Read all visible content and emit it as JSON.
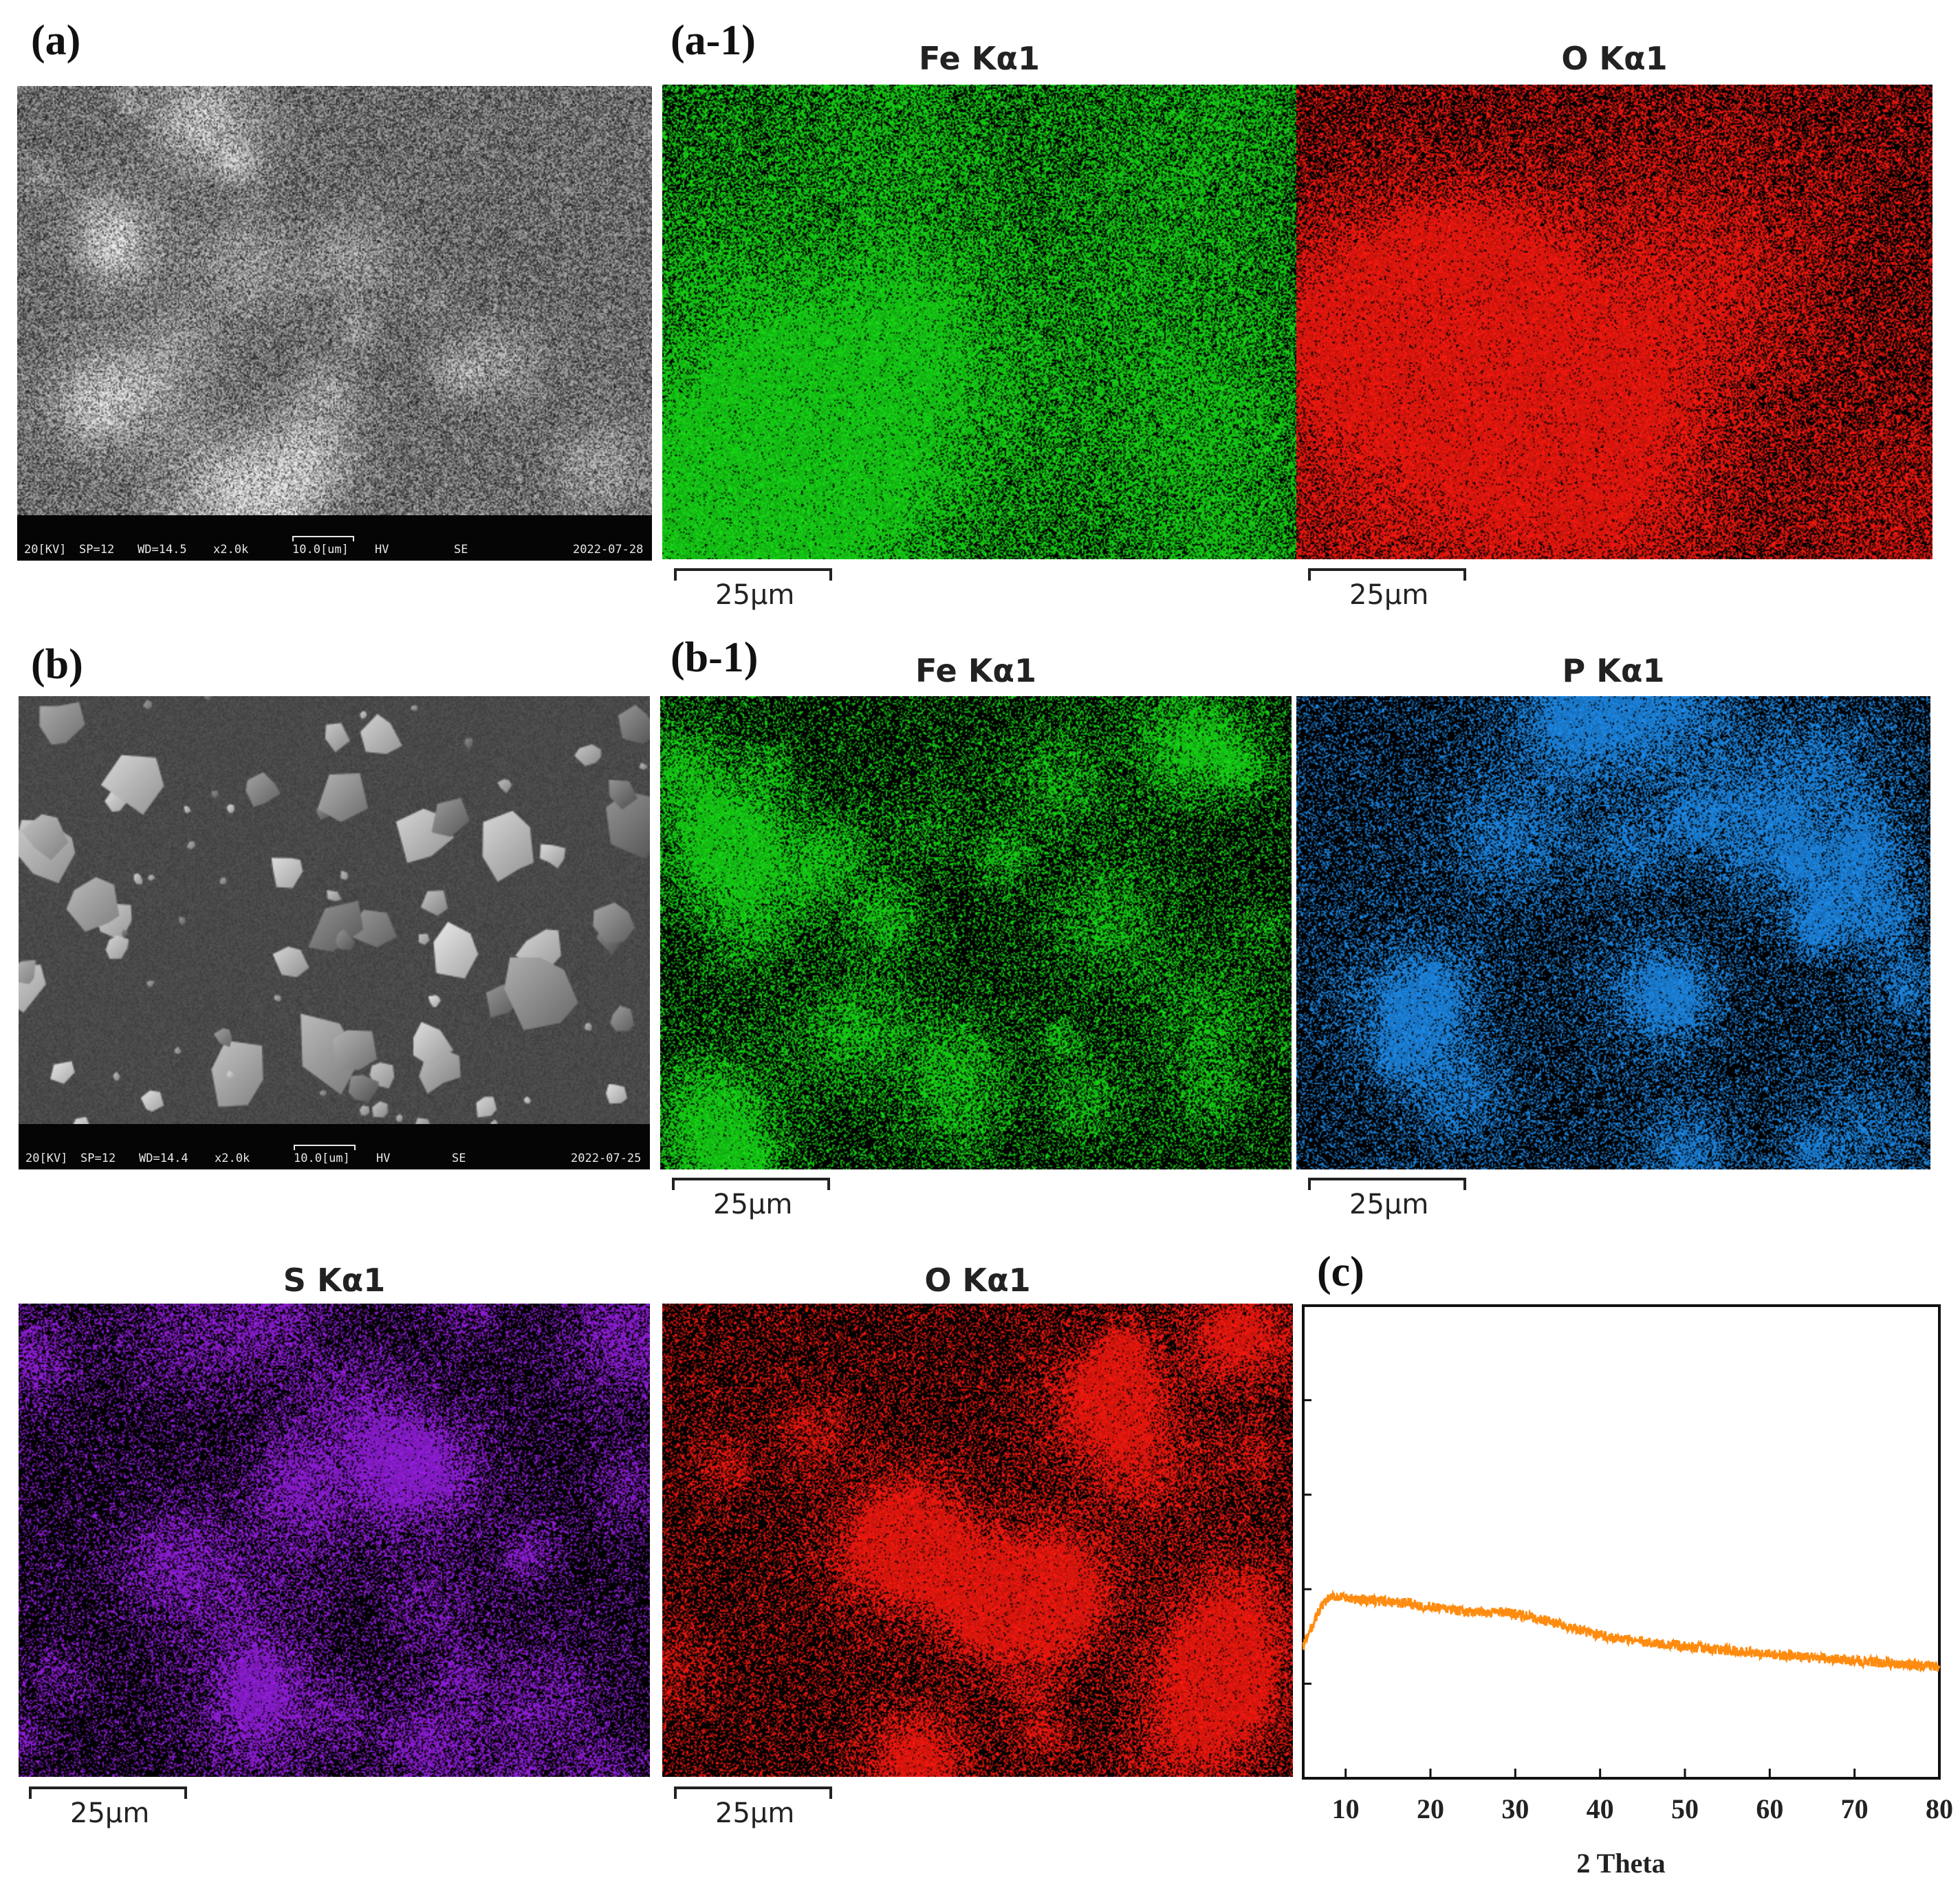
{
  "panels": {
    "a": {
      "letter": "(a)"
    },
    "a1": {
      "letter": "(a-1)",
      "map1_title": "Fe Kα1",
      "map2_title": "O Kα1",
      "map1_color": "#18e018",
      "map2_color": "#ff1a10"
    },
    "b": {
      "letter": "(b)"
    },
    "b1": {
      "letter": "(b-1)",
      "map1_title": "Fe Kα1",
      "map2_title": "P Kα1",
      "map1_color": "#18e018",
      "map2_color": "#1f8ff0"
    },
    "row3": {
      "map1_title": "S Kα1",
      "map2_title": "O Kα1",
      "map1_color": "#9a20e6",
      "map2_color": "#ff1a10"
    },
    "c": {
      "letter": "(c)"
    }
  },
  "scalebar_label": "25μm",
  "sem_a": {
    "kv": "20[KV]",
    "sp": "SP=12",
    "wd": "WD=14.5",
    "mag": "x2.0k",
    "scale": "10.0[um]",
    "hv": "HV",
    "se": "SE",
    "date": "2022-07-28"
  },
  "sem_b": {
    "kv": "20[KV]",
    "sp": "SP=12",
    "wd": "WD=14.4",
    "mag": "x2.0k",
    "scale": "10.0[um]",
    "hv": "HV",
    "se": "SE",
    "date": "2022-07-25"
  },
  "chart_data": {
    "type": "line",
    "title": "",
    "xlabel": "2 Theta",
    "ylabel": "",
    "xlim": [
      5,
      80
    ],
    "ylim": [
      0,
      1
    ],
    "xticks": [
      10,
      20,
      30,
      40,
      50,
      60,
      70,
      80
    ],
    "line_color": "#ff8c10",
    "grid": false,
    "series": [
      {
        "x": [
          5,
          6,
          7,
          8,
          9,
          10,
          12,
          14,
          16,
          18,
          20,
          22,
          24,
          26,
          28,
          30,
          32,
          34,
          36,
          38,
          40,
          42,
          44,
          46,
          48,
          50,
          52,
          54,
          56,
          58,
          60,
          62,
          64,
          66,
          68,
          70,
          72,
          74,
          76,
          78,
          80
        ],
        "y": [
          0.28,
          0.32,
          0.36,
          0.38,
          0.385,
          0.38,
          0.378,
          0.375,
          0.372,
          0.368,
          0.362,
          0.357,
          0.352,
          0.35,
          0.352,
          0.348,
          0.34,
          0.332,
          0.322,
          0.312,
          0.303,
          0.297,
          0.292,
          0.287,
          0.283,
          0.279,
          0.276,
          0.272,
          0.269,
          0.266,
          0.263,
          0.26,
          0.257,
          0.254,
          0.252,
          0.249,
          0.246,
          0.244,
          0.241,
          0.238,
          0.235
        ]
      }
    ]
  }
}
